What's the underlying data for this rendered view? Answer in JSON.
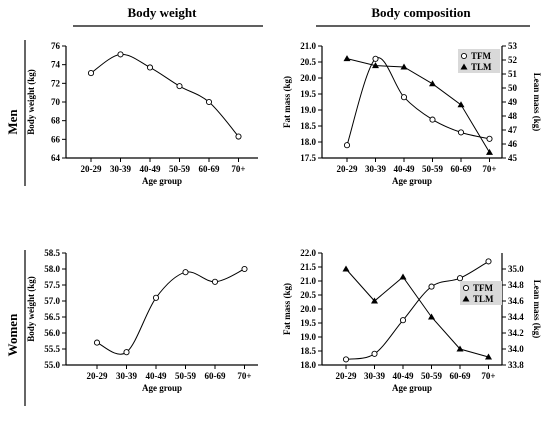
{
  "headers": {
    "left": "Body weight",
    "right": "Body composition"
  },
  "row_labels": {
    "top": "Men",
    "bottom": "Women"
  },
  "chart_data": [
    {
      "id": "men-weight",
      "type": "line",
      "categories": [
        "20-29",
        "30-39",
        "40-49",
        "50-59",
        "60-69",
        "70+"
      ],
      "xlabel": "Age group",
      "ylabel": "Body weight (kg)",
      "ylim": [
        64,
        76
      ],
      "yticks": [
        "64",
        "66",
        "68",
        "70",
        "72",
        "74",
        "76"
      ],
      "series": [
        {
          "marker": "circle",
          "values": [
            73.1,
            75.1,
            73.7,
            71.7,
            70.0,
            66.3
          ]
        }
      ]
    },
    {
      "id": "men-comp",
      "type": "line",
      "categories": [
        "20-29",
        "30-39",
        "40-49",
        "50-59",
        "60-69",
        "70+"
      ],
      "xlabel": "Age group",
      "ylabel": "Fat mass (kg)",
      "y2label": "Lean mass (kg)",
      "ylim": [
        17.5,
        21.0
      ],
      "yticks": [
        "17.5",
        "18.0",
        "18.5",
        "19.0",
        "19.5",
        "20.0",
        "20.5",
        "21.0"
      ],
      "y2lim": [
        45,
        53
      ],
      "y2ticks": [
        "45",
        "46",
        "47",
        "48",
        "49",
        "50",
        "51",
        "52",
        "53"
      ],
      "legend": {
        "position": "top-right",
        "items": [
          "TFM",
          "TLM"
        ]
      },
      "series": [
        {
          "name": "TFM",
          "marker": "circle",
          "axis": "left",
          "values": [
            17.9,
            20.6,
            19.4,
            18.7,
            18.3,
            18.1
          ]
        },
        {
          "name": "TLM",
          "marker": "triangle",
          "axis": "right",
          "values": [
            52.1,
            51.6,
            51.5,
            50.3,
            48.8,
            45.4
          ]
        }
      ]
    },
    {
      "id": "women-weight",
      "type": "line",
      "categories": [
        "20-29",
        "30-39",
        "40-49",
        "50-59",
        "60-69",
        "70+"
      ],
      "xlabel": "Age group",
      "ylabel": "Body weight (kg)",
      "ylim": [
        55.0,
        58.5
      ],
      "yticks": [
        "55.0",
        "55.5",
        "56.0",
        "56.5",
        "57.0",
        "57.5",
        "58.0",
        "58.5"
      ],
      "series": [
        {
          "marker": "circle",
          "values": [
            55.7,
            55.4,
            57.1,
            57.9,
            57.6,
            58.0
          ]
        }
      ]
    },
    {
      "id": "women-comp",
      "type": "line",
      "categories": [
        "20-29",
        "30-39",
        "40-49",
        "50-59",
        "60-69",
        "70+"
      ],
      "xlabel": "Age group",
      "ylabel": "Fat mass (kg)",
      "y2label": "Lean mass (kg)",
      "ylim": [
        18.0,
        22.0
      ],
      "yticks": [
        "18.0",
        "18.5",
        "19.0",
        "19.5",
        "20.0",
        "20.5",
        "21.0",
        "21.5",
        "22.0"
      ],
      "y2lim": [
        33.8,
        35.2
      ],
      "y2ticks": [
        "33.8",
        "34.0",
        "34.2",
        "34.4",
        "34.6",
        "34.8",
        "35.0"
      ],
      "legend": {
        "position": "right",
        "items": [
          "TFM",
          "TLM"
        ]
      },
      "series": [
        {
          "name": "TFM",
          "marker": "circle",
          "axis": "left",
          "values": [
            18.2,
            18.4,
            19.6,
            20.8,
            21.1,
            21.7
          ]
        },
        {
          "name": "TLM",
          "marker": "triangle",
          "axis": "right",
          "values": [
            35.0,
            34.6,
            34.9,
            34.4,
            34.0,
            33.9
          ]
        }
      ]
    }
  ]
}
